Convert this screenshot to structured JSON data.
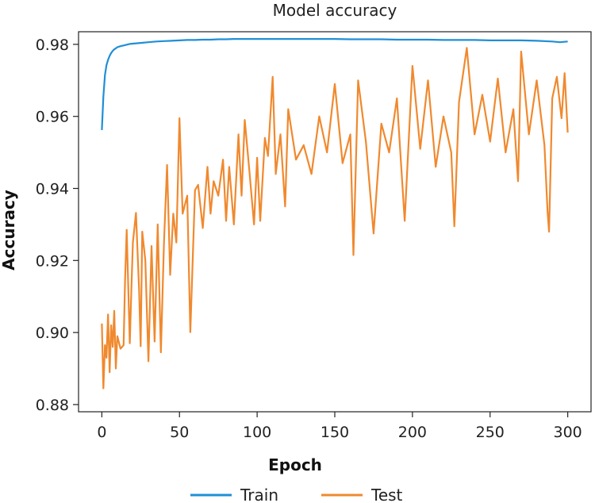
{
  "chart_data": {
    "type": "line",
    "title": "Model accuracy",
    "xlabel": "Epoch",
    "ylabel": "Accuracy",
    "xlim": [
      -15,
      315
    ],
    "ylim": [
      0.878,
      0.9835
    ],
    "xticks": [
      0,
      50,
      100,
      150,
      200,
      250,
      300
    ],
    "yticks": [
      0.88,
      0.9,
      0.92,
      0.94,
      0.96,
      0.98
    ],
    "ytick_labels": [
      "0.88",
      "0.90",
      "0.92",
      "0.94",
      "0.96",
      "0.98"
    ],
    "grid": false,
    "legend": "bottom",
    "series": [
      {
        "name": "Train",
        "color": "#1f8fd6",
        "x": [
          0,
          1,
          2,
          3,
          4,
          5,
          6,
          7,
          8,
          9,
          10,
          12,
          14,
          16,
          18,
          20,
          25,
          30,
          35,
          40,
          45,
          50,
          55,
          60,
          65,
          70,
          75,
          80,
          85,
          90,
          95,
          100,
          110,
          120,
          130,
          140,
          150,
          160,
          170,
          180,
          190,
          200,
          210,
          220,
          230,
          240,
          250,
          260,
          270,
          280,
          290,
          295,
          300
        ],
        "values": [
          0.9562,
          0.9655,
          0.9715,
          0.9742,
          0.9757,
          0.9768,
          0.9776,
          0.9782,
          0.9786,
          0.9789,
          0.9792,
          0.9795,
          0.9797,
          0.9799,
          0.9801,
          0.9802,
          0.9804,
          0.9806,
          0.9808,
          0.9809,
          0.981,
          0.9811,
          0.9812,
          0.9812,
          0.9813,
          0.9813,
          0.9814,
          0.9814,
          0.9815,
          0.9815,
          0.9815,
          0.9815,
          0.9815,
          0.9815,
          0.9815,
          0.9815,
          0.9815,
          0.9814,
          0.9814,
          0.9814,
          0.9813,
          0.9813,
          0.9813,
          0.9812,
          0.9812,
          0.9812,
          0.9811,
          0.9811,
          0.9811,
          0.981,
          0.9808,
          0.9806,
          0.9808
        ]
      },
      {
        "name": "Test",
        "color": "#f0892e",
        "x": [
          0,
          1,
          2,
          3,
          4,
          5,
          6,
          7,
          8,
          9,
          10,
          12,
          14,
          15,
          16,
          18,
          19,
          20,
          22,
          24,
          25,
          26,
          28,
          30,
          32,
          34,
          36,
          38,
          40,
          42,
          44,
          46,
          48,
          50,
          52,
          55,
          57,
          60,
          62,
          65,
          68,
          70,
          72,
          75,
          78,
          80,
          82,
          85,
          88,
          90,
          92,
          95,
          98,
          100,
          102,
          105,
          107,
          110,
          112,
          115,
          118,
          120,
          125,
          130,
          135,
          140,
          145,
          150,
          155,
          160,
          162,
          165,
          170,
          175,
          180,
          185,
          190,
          195,
          200,
          205,
          210,
          215,
          220,
          225,
          227,
          230,
          235,
          240,
          245,
          250,
          255,
          260,
          265,
          268,
          270,
          275,
          280,
          285,
          287,
          288,
          290,
          293,
          296,
          298,
          300
        ],
        "values": [
          0.9025,
          0.8845,
          0.8965,
          0.893,
          0.905,
          0.889,
          0.902,
          0.896,
          0.906,
          0.89,
          0.899,
          0.8955,
          0.8965,
          0.915,
          0.9285,
          0.897,
          0.912,
          0.925,
          0.9332,
          0.912,
          0.8962,
          0.928,
          0.92,
          0.892,
          0.924,
          0.8975,
          0.93,
          0.8945,
          0.925,
          0.9465,
          0.916,
          0.933,
          0.925,
          0.9595,
          0.933,
          0.938,
          0.9001,
          0.9395,
          0.941,
          0.929,
          0.946,
          0.933,
          0.942,
          0.938,
          0.948,
          0.931,
          0.946,
          0.93,
          0.955,
          0.938,
          0.959,
          0.945,
          0.93,
          0.9485,
          0.931,
          0.954,
          0.949,
          0.971,
          0.944,
          0.955,
          0.935,
          0.962,
          0.948,
          0.952,
          0.944,
          0.96,
          0.95,
          0.969,
          0.947,
          0.955,
          0.9215,
          0.97,
          0.953,
          0.9275,
          0.958,
          0.95,
          0.965,
          0.931,
          0.974,
          0.951,
          0.97,
          0.946,
          0.96,
          0.95,
          0.9295,
          0.964,
          0.979,
          0.955,
          0.966,
          0.953,
          0.9705,
          0.95,
          0.962,
          0.942,
          0.978,
          0.955,
          0.97,
          0.952,
          0.9335,
          0.928,
          0.965,
          0.971,
          0.9595,
          0.972,
          0.9555
        ]
      }
    ]
  }
}
